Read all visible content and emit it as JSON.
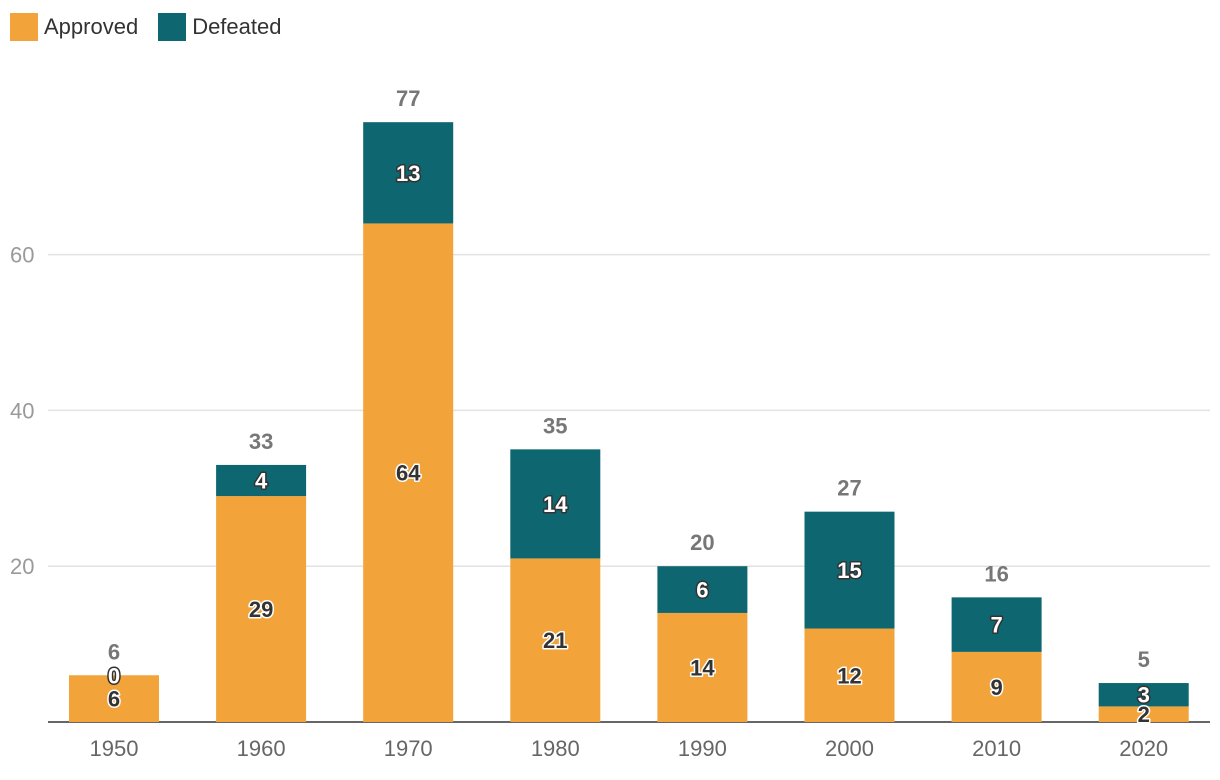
{
  "chart_data": {
    "type": "bar",
    "stacked": true,
    "categories": [
      "1950",
      "1960",
      "1970",
      "1980",
      "1990",
      "2000",
      "2010",
      "2020"
    ],
    "series": [
      {
        "name": "Approved",
        "color": "#f2a33a",
        "values": [
          6,
          29,
          64,
          21,
          14,
          12,
          9,
          2
        ]
      },
      {
        "name": "Defeated",
        "color": "#0d6670",
        "values": [
          0,
          4,
          13,
          14,
          6,
          15,
          7,
          3
        ]
      }
    ],
    "totals": [
      6,
      33,
      77,
      35,
      20,
      27,
      16,
      5
    ],
    "yticks": [
      20,
      40,
      60
    ],
    "ylim": [
      0,
      80
    ],
    "grid": true,
    "legend_position": "top-left",
    "title": "",
    "xlabel": "",
    "ylabel": ""
  }
}
